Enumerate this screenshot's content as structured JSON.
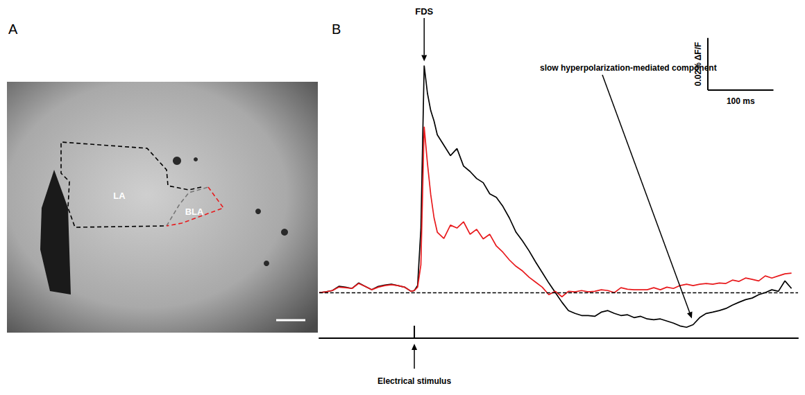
{
  "panel_a": {
    "letter": "A",
    "regions": [
      {
        "label": "LA",
        "color": "#000000"
      },
      {
        "label": "BLA",
        "color": "#e8191c"
      }
    ]
  },
  "chart_data": {
    "type": "line",
    "panel_label": "B",
    "x": [
      0,
      10,
      20,
      30,
      40,
      50,
      60,
      70,
      80,
      90,
      100,
      110,
      120,
      130,
      140,
      145,
      150,
      155,
      160,
      165,
      170,
      175,
      180,
      190,
      200,
      210,
      220,
      230,
      240,
      250,
      260,
      270,
      280,
      290,
      300,
      310,
      320,
      330,
      340,
      350,
      360,
      370,
      380,
      390,
      400,
      410,
      420,
      430,
      440,
      450,
      460,
      470,
      480,
      490,
      500,
      510,
      520,
      530,
      540,
      550,
      560,
      570,
      580,
      590,
      600,
      610,
      620,
      630,
      640,
      650,
      660,
      670,
      680,
      690,
      700,
      710,
      720
    ],
    "series": [
      {
        "color": "#000000",
        "values": [
          0,
          0.0003,
          0.0008,
          0.0024,
          0.0021,
          0.0016,
          0.0037,
          0.0024,
          0.0011,
          0.0024,
          0.0029,
          0.0032,
          0.0027,
          0.0021,
          0.0005,
          0.0008,
          0.0027,
          0.0245,
          0.0872,
          0.0765,
          0.0699,
          0.0659,
          0.0606,
          0.0566,
          0.0526,
          0.0553,
          0.0486,
          0.0465,
          0.0438,
          0.0422,
          0.0379,
          0.0366,
          0.0331,
          0.0286,
          0.0232,
          0.0198,
          0.016,
          0.0117,
          0.0077,
          0.0037,
          0,
          -0.0037,
          -0.0069,
          -0.008,
          -0.0088,
          -0.0088,
          -0.0091,
          -0.0075,
          -0.0069,
          -0.008,
          -0.0088,
          -0.0085,
          -0.0096,
          -0.0091,
          -0.0101,
          -0.0104,
          -0.0101,
          -0.0109,
          -0.0117,
          -0.0128,
          -0.0133,
          -0.0123,
          -0.0096,
          -0.008,
          -0.0075,
          -0.0069,
          -0.0061,
          -0.0048,
          -0.0037,
          -0.0027,
          -0.0021,
          -0.0008,
          0,
          0.0011,
          0.0005,
          0.0045,
          0.0016
        ]
      },
      {
        "color": "#e8191c",
        "values": [
          0,
          0.0003,
          0.0008,
          0.0021,
          0.0019,
          0.0016,
          0.0035,
          0.0024,
          0.0011,
          0.0021,
          0.0027,
          0.003,
          0.0027,
          0.0021,
          0.0005,
          0.0008,
          0.0021,
          0.0107,
          0.0637,
          0.0496,
          0.0376,
          0.0288,
          0.0232,
          0.0208,
          0.0259,
          0.0248,
          0.0272,
          0.0224,
          0.0243,
          0.0206,
          0.0224,
          0.0179,
          0.0155,
          0.0125,
          0.0101,
          0.0083,
          0.0059,
          0.004,
          0.0021,
          -0.0008,
          0.0005,
          -0.0016,
          0.0005,
          0.0003,
          0.0008,
          0.0003,
          0.0005,
          0.0011,
          0.0008,
          0,
          0.0019,
          0.0013,
          0.0011,
          0.0011,
          0.0011,
          0.0019,
          0.0011,
          0.0021,
          0.0016,
          0.0027,
          0.0032,
          0.0027,
          0.0032,
          0.0035,
          0.0032,
          0.0037,
          0.0035,
          0.0048,
          0.0043,
          0.0056,
          0.0051,
          0.0045,
          0.0064,
          0.0056,
          0.0064,
          0.0072,
          0.0075
        ]
      }
    ],
    "xlim": [
      0,
      730
    ],
    "ylim": [
      -0.0175,
      0.09
    ],
    "tick_labels": false,
    "grid": false,
    "baseline": 0,
    "peak_label": "FDS",
    "annotation": {
      "text": "slow hyperpolarization-mediated component",
      "x": 568,
      "y": -0.0107
    },
    "stimulus": {
      "text": "Electrical stimulus",
      "x": 145
    },
    "scale_bar": {
      "x": 100,
      "x_label": "100 ms",
      "y": 0.02,
      "y_label": "0.02% ΔF/F"
    }
  }
}
